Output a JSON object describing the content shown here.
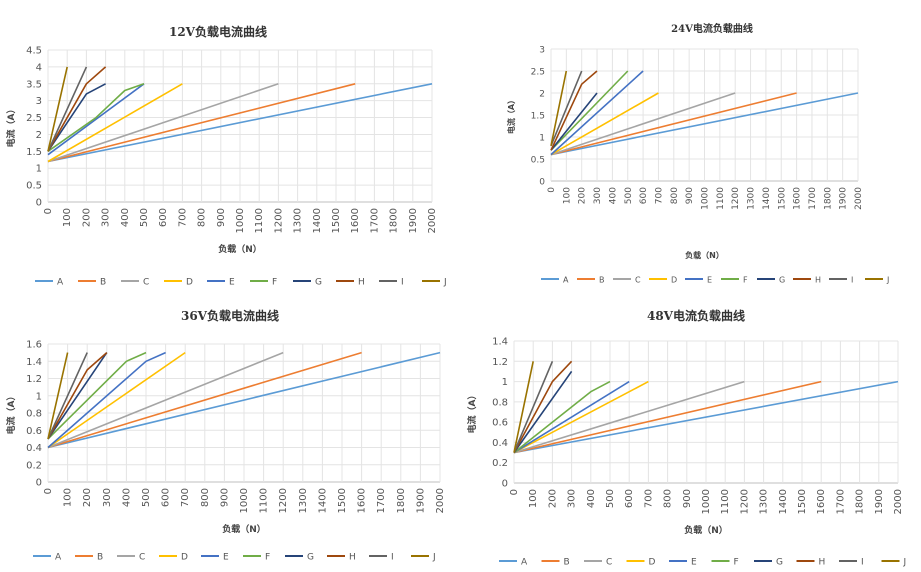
{
  "chart_data": [
    {
      "type": "line",
      "title": "12V负载电流曲线",
      "xlabel": "负载（N）",
      "ylabel": "电流（A）",
      "xlim": [
        0,
        2000
      ],
      "ylim": [
        0,
        4.5
      ],
      "x_ticks": [
        0,
        100,
        200,
        300,
        400,
        500,
        600,
        700,
        800,
        900,
        1000,
        1100,
        1200,
        1300,
        1400,
        1500,
        1600,
        1700,
        1800,
        1900,
        2000
      ],
      "y_ticks": [
        "0",
        "0.5",
        "1",
        "1.5",
        "2",
        "2.5",
        "3",
        "3.5",
        "4",
        "4.5"
      ],
      "grid": true,
      "legend": "bottom",
      "series": [
        {
          "name": "A",
          "color": "#5b9bd5",
          "points": [
            [
              0,
              1.2
            ],
            [
              2000,
              3.5
            ]
          ]
        },
        {
          "name": "B",
          "color": "#ed7d31",
          "points": [
            [
              0,
              1.2
            ],
            [
              1600,
              3.5
            ]
          ]
        },
        {
          "name": "C",
          "color": "#a5a5a5",
          "points": [
            [
              0,
              1.2
            ],
            [
              1200,
              3.5
            ]
          ]
        },
        {
          "name": "D",
          "color": "#ffc000",
          "points": [
            [
              0,
              1.2
            ],
            [
              700,
              3.5
            ]
          ]
        },
        {
          "name": "E",
          "color": "#4472c4",
          "points": [
            [
              0,
              1.4
            ],
            [
              500,
              3.5
            ]
          ]
        },
        {
          "name": "F",
          "color": "#70ad47",
          "points": [
            [
              0,
              1.5
            ],
            [
              250,
              2.5
            ],
            [
              400,
              3.3
            ],
            [
              500,
              3.5
            ]
          ]
        },
        {
          "name": "G",
          "color": "#264478",
          "points": [
            [
              0,
              1.5
            ],
            [
              200,
              3.2
            ],
            [
              300,
              3.5
            ]
          ]
        },
        {
          "name": "H",
          "color": "#9e480e",
          "points": [
            [
              0,
              1.5
            ],
            [
              200,
              3.5
            ],
            [
              300,
              4.0
            ]
          ]
        },
        {
          "name": "I",
          "color": "#636363",
          "points": [
            [
              0,
              1.5
            ],
            [
              200,
              4.0
            ]
          ]
        },
        {
          "name": "J",
          "color": "#997300",
          "points": [
            [
              0,
              1.5
            ],
            [
              100,
              4.0
            ]
          ]
        }
      ]
    },
    {
      "type": "line",
      "title": "24V电流负载曲线",
      "xlabel": "负载（N）",
      "ylabel": "电流（A）",
      "xlim": [
        0,
        2000
      ],
      "ylim": [
        0,
        3
      ],
      "x_ticks": [
        0,
        100,
        200,
        300,
        400,
        500,
        600,
        700,
        800,
        900,
        1000,
        1100,
        1200,
        1300,
        1400,
        1500,
        1600,
        1700,
        1800,
        1900,
        2000
      ],
      "y_ticks": [
        "0",
        "0.5",
        "1",
        "1.5",
        "2",
        "2.5",
        "3"
      ],
      "grid": true,
      "legend": "bottom",
      "series": [
        {
          "name": "A",
          "color": "#5b9bd5",
          "points": [
            [
              0,
              0.6
            ],
            [
              2000,
              2.0
            ]
          ]
        },
        {
          "name": "B",
          "color": "#ed7d31",
          "points": [
            [
              0,
              0.6
            ],
            [
              1600,
              2.0
            ]
          ]
        },
        {
          "name": "C",
          "color": "#a5a5a5",
          "points": [
            [
              0,
              0.6
            ],
            [
              1200,
              2.0
            ]
          ]
        },
        {
          "name": "D",
          "color": "#ffc000",
          "points": [
            [
              0,
              0.6
            ],
            [
              700,
              2.0
            ]
          ]
        },
        {
          "name": "E",
          "color": "#4472c4",
          "points": [
            [
              0,
              0.6
            ],
            [
              600,
              2.5
            ]
          ]
        },
        {
          "name": "F",
          "color": "#70ad47",
          "points": [
            [
              0,
              0.7
            ],
            [
              500,
              2.5
            ]
          ]
        },
        {
          "name": "G",
          "color": "#264478",
          "points": [
            [
              0,
              0.7
            ],
            [
              300,
              2.0
            ]
          ]
        },
        {
          "name": "H",
          "color": "#9e480e",
          "points": [
            [
              0,
              0.7
            ],
            [
              200,
              2.2
            ],
            [
              300,
              2.5
            ]
          ]
        },
        {
          "name": "I",
          "color": "#636363",
          "points": [
            [
              0,
              0.8
            ],
            [
              200,
              2.5
            ]
          ]
        },
        {
          "name": "J",
          "color": "#997300",
          "points": [
            [
              0,
              0.8
            ],
            [
              100,
              2.5
            ]
          ]
        }
      ]
    },
    {
      "type": "line",
      "title": "36V负载电流曲线",
      "xlabel": "负载（N）",
      "ylabel": "电流（A）",
      "xlim": [
        0,
        2000
      ],
      "ylim": [
        0,
        1.6
      ],
      "x_ticks": [
        0,
        100,
        200,
        300,
        400,
        500,
        600,
        700,
        800,
        900,
        1000,
        1100,
        1200,
        1300,
        1400,
        1500,
        1600,
        1700,
        1800,
        1900,
        2000
      ],
      "y_ticks": [
        "0",
        "0.2",
        "0.4",
        "0.6",
        "0.8",
        "1",
        "1.2",
        "1.4",
        "1.6"
      ],
      "grid": true,
      "legend": "bottom",
      "series": [
        {
          "name": "A",
          "color": "#5b9bd5",
          "points": [
            [
              0,
              0.4
            ],
            [
              2000,
              1.5
            ]
          ]
        },
        {
          "name": "B",
          "color": "#ed7d31",
          "points": [
            [
              0,
              0.4
            ],
            [
              1600,
              1.5
            ]
          ]
        },
        {
          "name": "C",
          "color": "#a5a5a5",
          "points": [
            [
              0,
              0.4
            ],
            [
              1200,
              1.5
            ]
          ]
        },
        {
          "name": "D",
          "color": "#ffc000",
          "points": [
            [
              0,
              0.4
            ],
            [
              700,
              1.5
            ]
          ]
        },
        {
          "name": "E",
          "color": "#4472c4",
          "points": [
            [
              0,
              0.4
            ],
            [
              500,
              1.4
            ],
            [
              600,
              1.5
            ]
          ]
        },
        {
          "name": "F",
          "color": "#70ad47",
          "points": [
            [
              0,
              0.5
            ],
            [
              400,
              1.4
            ],
            [
              500,
              1.5
            ]
          ]
        },
        {
          "name": "G",
          "color": "#264478",
          "points": [
            [
              0,
              0.5
            ],
            [
              300,
              1.5
            ]
          ]
        },
        {
          "name": "H",
          "color": "#9e480e",
          "points": [
            [
              0,
              0.5
            ],
            [
              200,
              1.3
            ],
            [
              300,
              1.5
            ]
          ]
        },
        {
          "name": "I",
          "color": "#636363",
          "points": [
            [
              0,
              0.5
            ],
            [
              200,
              1.5
            ]
          ]
        },
        {
          "name": "J",
          "color": "#997300",
          "points": [
            [
              0,
              0.5
            ],
            [
              100,
              1.5
            ]
          ]
        }
      ]
    },
    {
      "type": "line",
      "title": "48V电流负载曲线",
      "xlabel": "负载（N）",
      "ylabel": "电流（A）",
      "xlim": [
        0,
        2000
      ],
      "ylim": [
        0,
        1.4
      ],
      "x_ticks": [
        0,
        100,
        200,
        300,
        400,
        500,
        600,
        700,
        800,
        900,
        1000,
        1100,
        1200,
        1300,
        1400,
        1500,
        1600,
        1700,
        1800,
        1900,
        2000
      ],
      "y_ticks": [
        "0",
        "0.2",
        "0.4",
        "0.6",
        "0.8",
        "1",
        "1.2",
        "1.4"
      ],
      "grid": true,
      "legend": "bottom",
      "series": [
        {
          "name": "A",
          "color": "#5b9bd5",
          "points": [
            [
              0,
              0.3
            ],
            [
              2000,
              1.0
            ]
          ]
        },
        {
          "name": "B",
          "color": "#ed7d31",
          "points": [
            [
              0,
              0.3
            ],
            [
              1600,
              1.0
            ]
          ]
        },
        {
          "name": "C",
          "color": "#a5a5a5",
          "points": [
            [
              0,
              0.3
            ],
            [
              1200,
              1.0
            ]
          ]
        },
        {
          "name": "D",
          "color": "#ffc000",
          "points": [
            [
              0,
              0.3
            ],
            [
              700,
              1.0
            ]
          ]
        },
        {
          "name": "E",
          "color": "#4472c4",
          "points": [
            [
              0,
              0.3
            ],
            [
              600,
              1.0
            ]
          ]
        },
        {
          "name": "F",
          "color": "#70ad47",
          "points": [
            [
              0,
              0.3
            ],
            [
              400,
              0.9
            ],
            [
              500,
              1.0
            ]
          ]
        },
        {
          "name": "G",
          "color": "#264478",
          "points": [
            [
              0,
              0.3
            ],
            [
              300,
              1.1
            ]
          ]
        },
        {
          "name": "H",
          "color": "#9e480e",
          "points": [
            [
              0,
              0.3
            ],
            [
              200,
              1.0
            ],
            [
              300,
              1.2
            ]
          ]
        },
        {
          "name": "I",
          "color": "#636363",
          "points": [
            [
              0,
              0.3
            ],
            [
              200,
              1.2
            ]
          ]
        },
        {
          "name": "J",
          "color": "#997300",
          "points": [
            [
              0,
              0.3
            ],
            [
              100,
              1.2
            ]
          ]
        }
      ]
    }
  ]
}
